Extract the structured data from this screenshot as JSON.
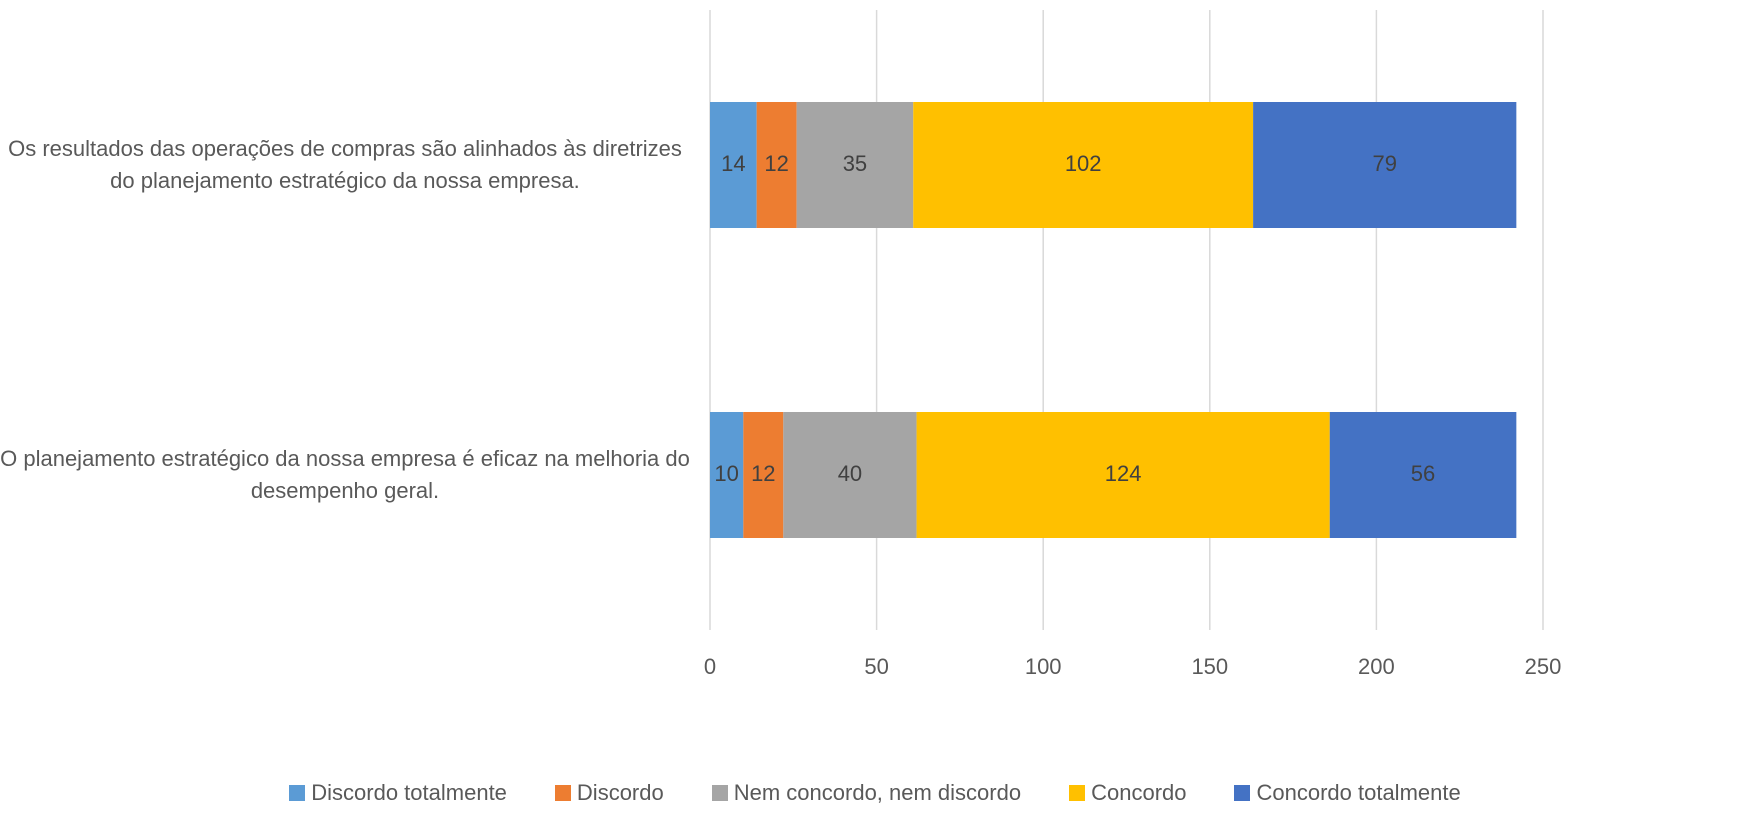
{
  "chart_data": {
    "type": "stacked_barh",
    "categories": [
      "Os resultados das operações de compras são alinhados às diretrizes do planejamento estratégico da nossa empresa.",
      "O planejamento estratégico da nossa empresa é eficaz na melhoria do desempenho geral."
    ],
    "series": [
      {
        "name": "Discordo totalmente",
        "color": "#5b9bd5",
        "values": [
          14,
          10
        ]
      },
      {
        "name": "Discordo",
        "color": "#ed7d31",
        "values": [
          12,
          12
        ]
      },
      {
        "name": "Nem concordo, nem discordo",
        "color": "#a5a5a5",
        "values": [
          35,
          40
        ]
      },
      {
        "name": "Concordo",
        "color": "#ffc000",
        "values": [
          102,
          124
        ]
      },
      {
        "name": "Concordo totalmente",
        "color": "#4472c4",
        "values": [
          79,
          56
        ]
      }
    ],
    "xlim": [
      0,
      250
    ],
    "xticks": [
      0,
      50,
      100,
      150,
      200,
      250
    ],
    "grid": true,
    "legend": "bottom"
  }
}
